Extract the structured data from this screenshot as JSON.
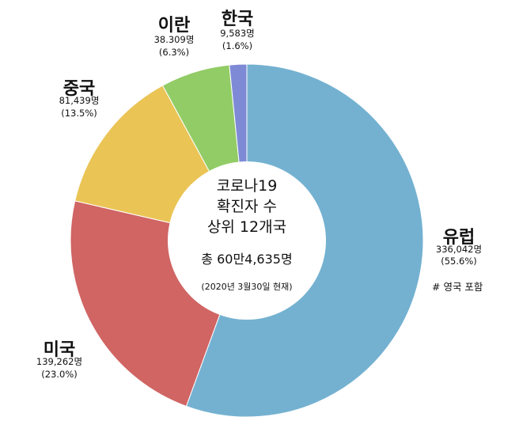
{
  "chart_data": {
    "type": "pie",
    "style": "donut",
    "title": [
      "코로나19",
      "확진자 수",
      "상위 12개국"
    ],
    "total": "총 60만4,635명",
    "date": "(2020년 3월30일 현재)",
    "note": "# 영국 포함",
    "slices": [
      {
        "name": "유럽",
        "value": 336042,
        "value_label": "336,042명",
        "pct_label": "(55.6%)",
        "percent": 55.6,
        "color": "#74b1d1"
      },
      {
        "name": "미국",
        "value": 139262,
        "value_label": "139,262명",
        "pct_label": "(23.0%)",
        "percent": 23.0,
        "color": "#d06564"
      },
      {
        "name": "중국",
        "value": 81439,
        "value_label": "81,439명",
        "pct_label": "(13.5%)",
        "percent": 13.5,
        "color": "#eac455"
      },
      {
        "name": "이란",
        "value": 38309,
        "value_label": "38.309명",
        "pct_label": "(6.3%)",
        "percent": 6.3,
        "color": "#92cc66"
      },
      {
        "name": "한국",
        "value": 9583,
        "value_label": "9,583명",
        "pct_label": "(1.6%)",
        "percent": 1.6,
        "color": "#7f8ad6"
      }
    ]
  }
}
